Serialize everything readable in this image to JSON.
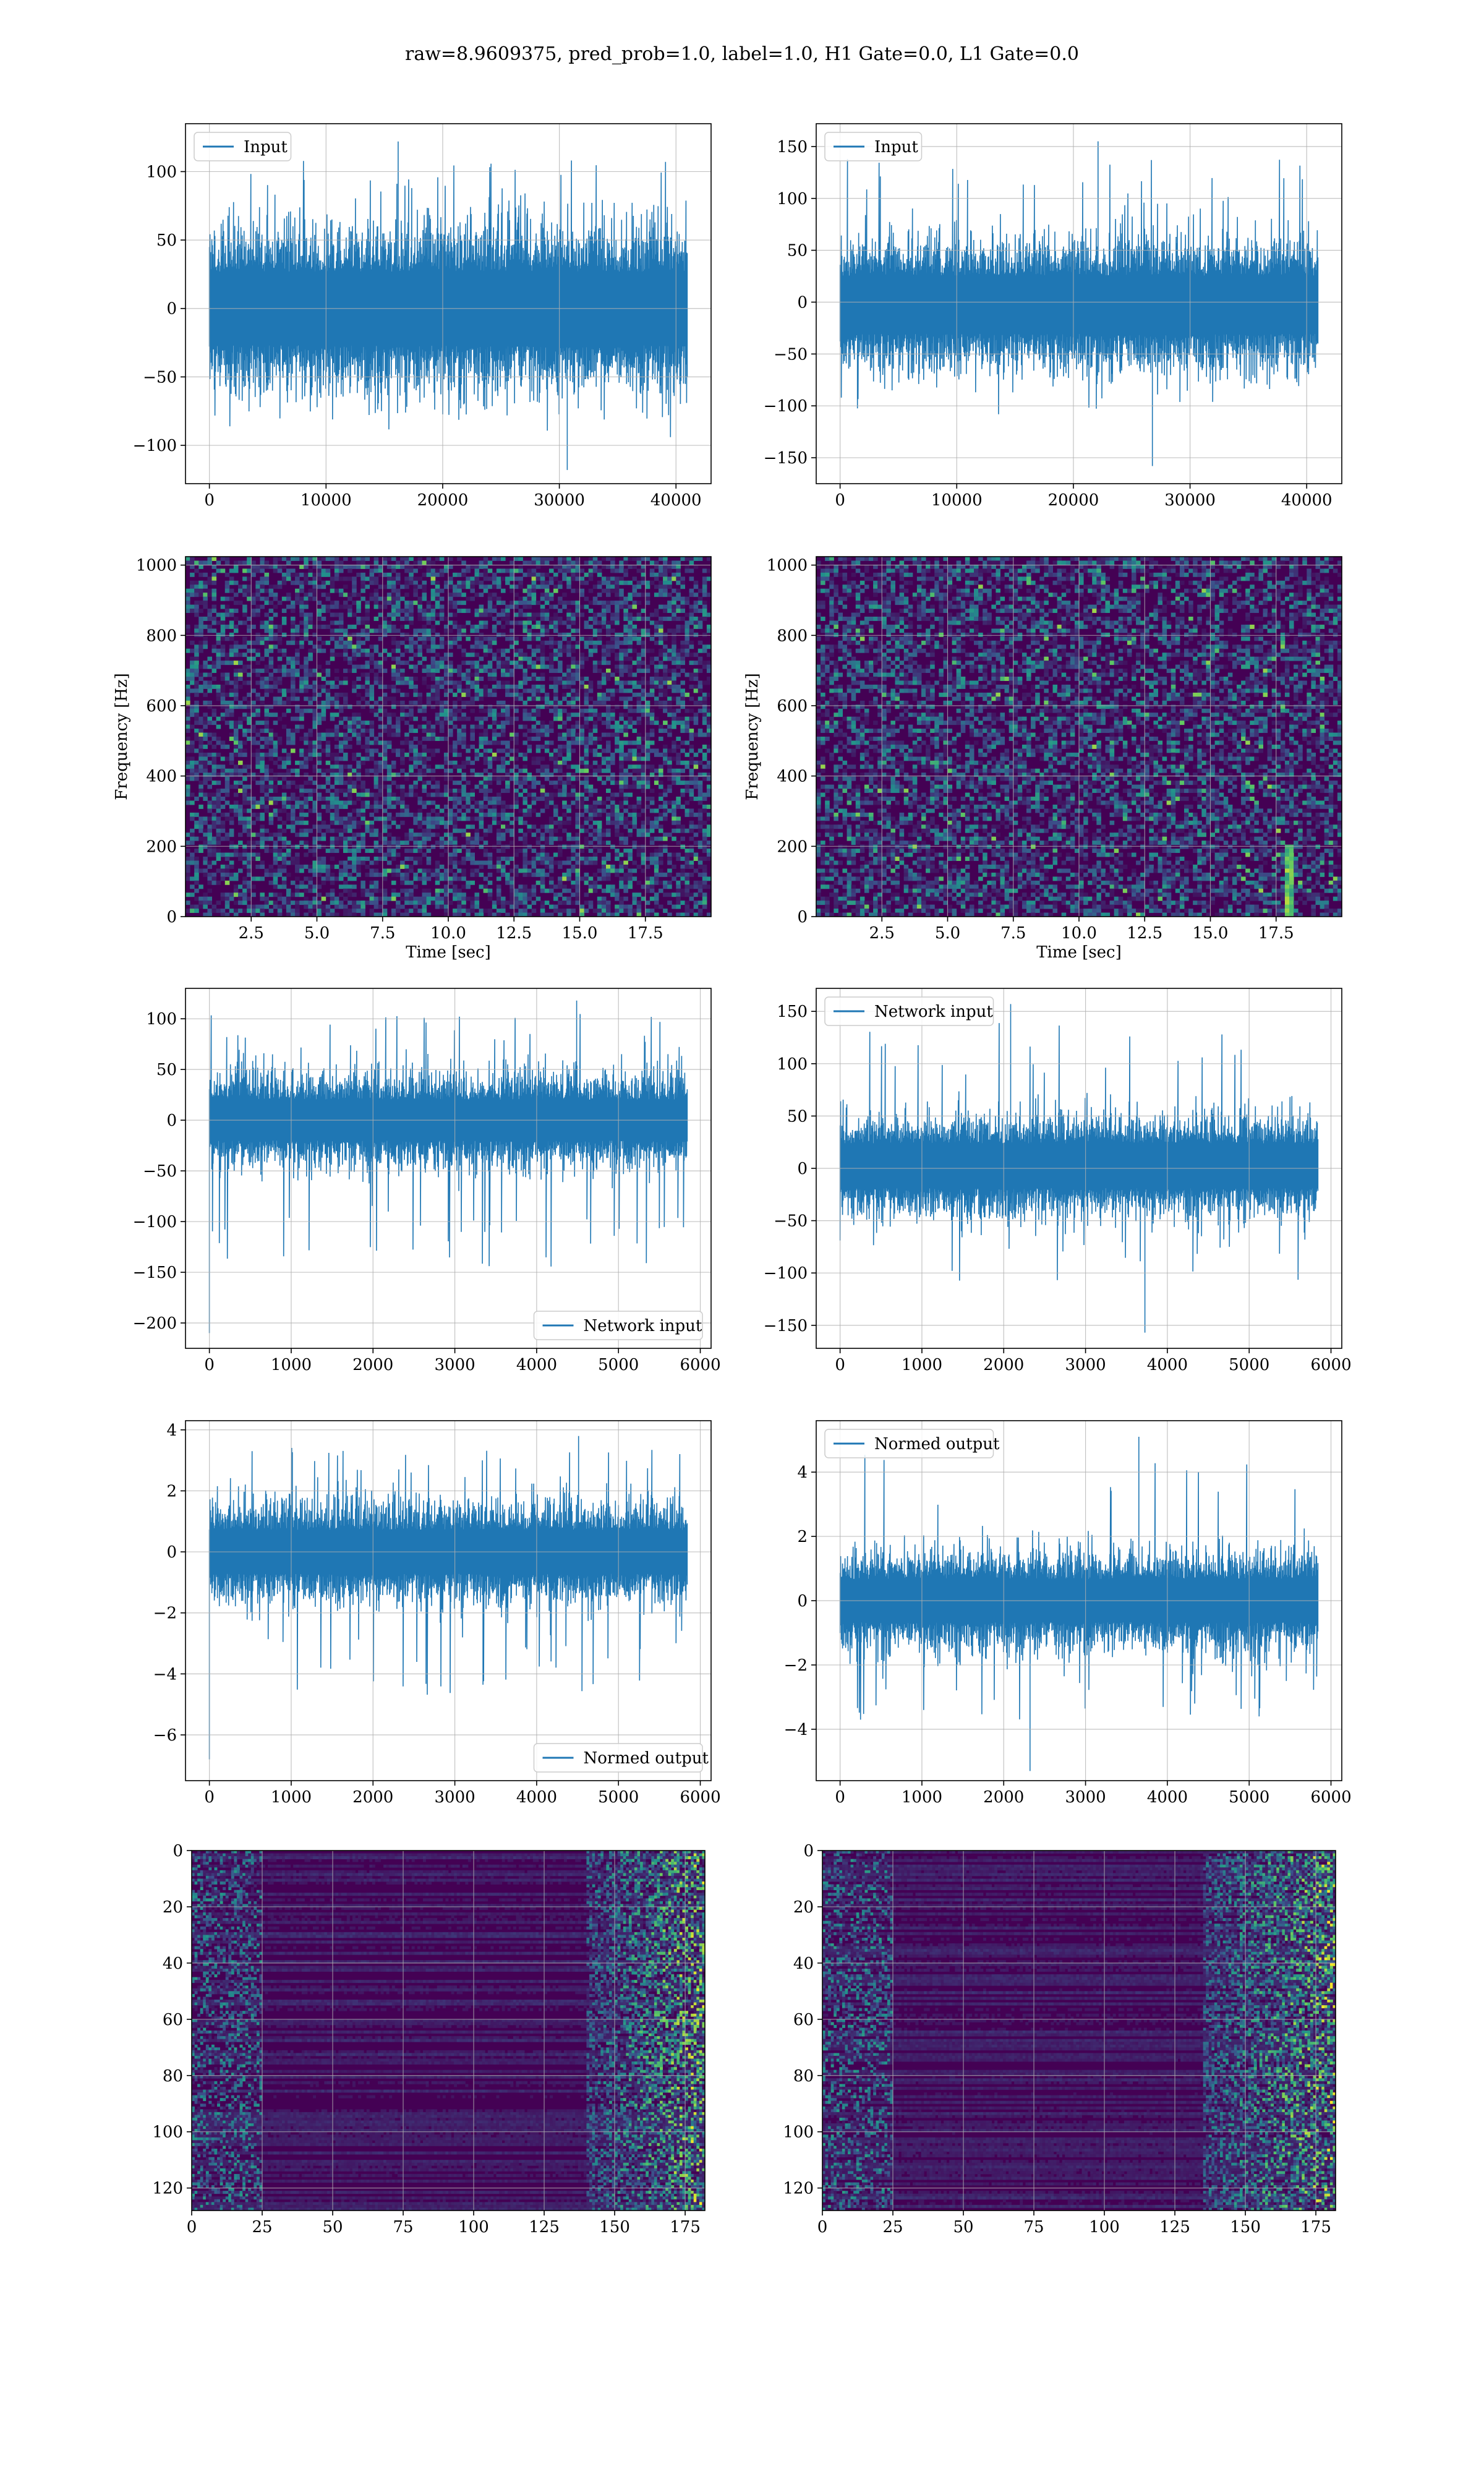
{
  "title": "raw=8.9609375, pred_prob=1.0, label=1.0, H1 Gate=0.0, L1 Gate=0.0",
  "colors": {
    "series": "#1f77b4",
    "grid": "#b0b0b0",
    "viridis_low": "#440154",
    "viridis_high": "#fde725"
  },
  "chart_data": [
    {
      "id": "input-h1",
      "type": "line",
      "legend": "Input",
      "legend_loc": "upper left",
      "xlim": [
        -2048,
        43008
      ],
      "ylim": [
        -128,
        135
      ],
      "xticks": [
        0,
        10000,
        20000,
        30000,
        40000
      ],
      "yticks": [
        -100,
        -50,
        0,
        50,
        100
      ],
      "n_points": 40960,
      "envelope": {
        "typical": [
          -60,
          60
        ],
        "max": 122,
        "min": -118
      },
      "grid": true
    },
    {
      "id": "input-l1",
      "type": "line",
      "legend": "Input",
      "legend_loc": "upper left",
      "xlim": [
        -2048,
        43008
      ],
      "ylim": [
        -175,
        172
      ],
      "xticks": [
        0,
        10000,
        20000,
        30000,
        40000
      ],
      "yticks": [
        -150,
        -100,
        -50,
        0,
        50,
        100,
        150
      ],
      "n_points": 40960,
      "envelope": {
        "typical": [
          -65,
          60
        ],
        "max": 155,
        "min": -158
      },
      "grid": true
    },
    {
      "id": "spec-h1",
      "type": "heatmap",
      "xlabel": "Time [sec]",
      "ylabel": "Frequency [Hz]",
      "xlim": [
        0,
        20
      ],
      "ylim": [
        0,
        1024
      ],
      "xticks": [
        2.5,
        5.0,
        7.5,
        10.0,
        12.5,
        15.0,
        17.5
      ],
      "yticks": [
        0,
        200,
        400,
        600,
        800,
        1000
      ],
      "colormap": "viridis",
      "grid": true
    },
    {
      "id": "spec-l1",
      "type": "heatmap",
      "xlabel": "Time [sec]",
      "ylabel": "Frequency [Hz]",
      "xlim": [
        0,
        20
      ],
      "ylim": [
        0,
        1024
      ],
      "xticks": [
        2.5,
        5.0,
        7.5,
        10.0,
        12.5,
        15.0,
        17.5
      ],
      "yticks": [
        0,
        200,
        400,
        600,
        800,
        1000
      ],
      "colormap": "viridis",
      "grid": true,
      "feature": {
        "t": 18.0,
        "f": [
          0,
          200
        ]
      }
    },
    {
      "id": "net-h1",
      "type": "line",
      "legend": "Network input",
      "legend_loc": "lower right",
      "xlim": [
        -292,
        6132
      ],
      "ylim": [
        -225,
        130
      ],
      "xticks": [
        0,
        1000,
        2000,
        3000,
        4000,
        5000,
        6000
      ],
      "yticks": [
        -200,
        -150,
        -100,
        -50,
        0,
        50,
        100
      ],
      "n_points": 5840,
      "envelope": {
        "typical": [
          -45,
          45
        ],
        "max": 118,
        "min": -210
      },
      "grid": true
    },
    {
      "id": "net-l1",
      "type": "line",
      "legend": "Network input",
      "legend_loc": "upper left",
      "xlim": [
        -292,
        6132
      ],
      "ylim": [
        -172,
        172
      ],
      "xticks": [
        0,
        1000,
        2000,
        3000,
        4000,
        5000,
        6000
      ],
      "yticks": [
        -150,
        -100,
        -50,
        0,
        50,
        100,
        150
      ],
      "n_points": 5840,
      "envelope": {
        "typical": [
          -45,
          50
        ],
        "max": 157,
        "min": -157
      },
      "grid": true
    },
    {
      "id": "norm-h1",
      "type": "line",
      "legend": "Normed output",
      "legend_loc": "lower right",
      "xlim": [
        -292,
        6132
      ],
      "ylim": [
        -7.5,
        4.3
      ],
      "xticks": [
        0,
        1000,
        2000,
        3000,
        4000,
        5000,
        6000
      ],
      "yticks": [
        -6,
        -4,
        -2,
        0,
        2,
        4
      ],
      "n_points": 5840,
      "envelope": {
        "typical": [
          -1.6,
          1.6
        ],
        "max": 3.8,
        "min": -6.8
      },
      "grid": true
    },
    {
      "id": "norm-l1",
      "type": "line",
      "legend": "Normed output",
      "legend_loc": "upper left",
      "xlim": [
        -292,
        6132
      ],
      "ylim": [
        -5.6,
        5.6
      ],
      "xticks": [
        0,
        1000,
        2000,
        3000,
        4000,
        5000,
        6000
      ],
      "yticks": [
        -4,
        -2,
        0,
        2,
        4
      ],
      "n_points": 5840,
      "envelope": {
        "typical": [
          -1.5,
          1.5
        ],
        "max": 5.1,
        "min": -5.3
      },
      "grid": true
    },
    {
      "id": "feat-h1",
      "type": "heatmap",
      "xlim": [
        0,
        182
      ],
      "ylim": [
        128,
        0
      ],
      "xticks": [
        0,
        25,
        50,
        75,
        100,
        125,
        150,
        175
      ],
      "yticks": [
        0,
        20,
        40,
        60,
        80,
        100,
        120
      ],
      "colormap": "viridis",
      "grid": true,
      "active_columns": [
        140,
        182
      ]
    },
    {
      "id": "feat-l1",
      "type": "heatmap",
      "xlim": [
        0,
        182
      ],
      "ylim": [
        128,
        0
      ],
      "xticks": [
        0,
        25,
        50,
        75,
        100,
        125,
        150,
        175
      ],
      "yticks": [
        0,
        20,
        40,
        60,
        80,
        100,
        120
      ],
      "colormap": "viridis",
      "grid": true,
      "active_columns": [
        135,
        182
      ]
    }
  ]
}
